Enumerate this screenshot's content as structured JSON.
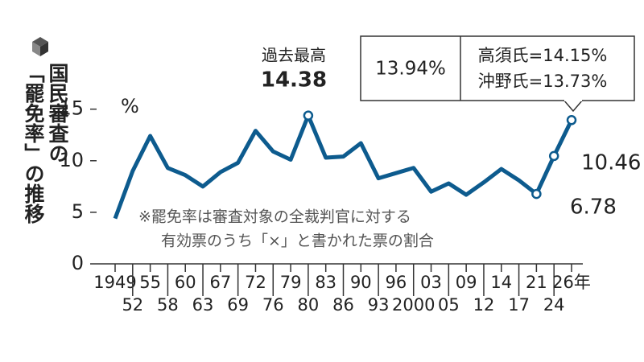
{
  "chart_data": {
    "type": "line",
    "title_lines": [
      "国民審査の",
      "「罷免率」の推移"
    ],
    "y_unit": "%",
    "categories": [
      "1949",
      "52",
      "55",
      "58",
      "60",
      "63",
      "67",
      "69",
      "72",
      "76",
      "79",
      "80",
      "83",
      "86",
      "90",
      "93",
      "96",
      "2000",
      "03",
      "05",
      "09",
      "12",
      "14",
      "17",
      "21",
      "24",
      "26年"
    ],
    "series": [
      {
        "color": "#0d5b8e",
        "values": [
          4.4,
          9.0,
          12.4,
          9.3,
          8.6,
          7.5,
          8.9,
          9.8,
          12.9,
          10.9,
          10.1,
          14.38,
          10.3,
          10.4,
          11.7,
          8.3,
          8.8,
          9.3,
          7.0,
          7.8,
          6.7,
          7.9,
          9.2,
          8.1,
          6.78,
          10.46,
          13.94
        ],
        "value_labels": [
          null,
          null,
          null,
          null,
          null,
          null,
          null,
          null,
          null,
          null,
          null,
          "14.38",
          null,
          null,
          null,
          null,
          null,
          null,
          null,
          null,
          null,
          null,
          null,
          null,
          "6.78",
          "10.46",
          "13.94%"
        ]
      }
    ],
    "ylim": [
      0,
      15.6
    ],
    "yticks": [
      0,
      5,
      10,
      15
    ],
    "peak_annotation": "過去最高",
    "callout_lines": [
      "高須氏=14.15%",
      "沖野氏=13.73%"
    ],
    "note_lines": [
      "※罷免率は審査対象の全裁判官に対する",
      "有効票のうち「×」と書かれた票の割合"
    ]
  }
}
